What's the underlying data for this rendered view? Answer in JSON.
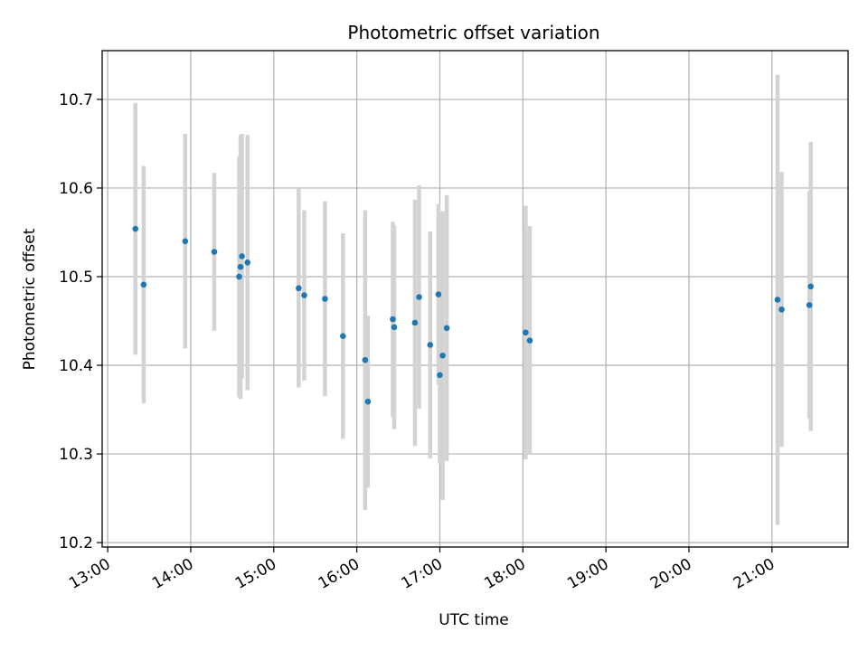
{
  "chart_data": {
    "type": "scatter",
    "title": "Photometric offset variation",
    "xlabel": "UTC time",
    "ylabel": "Photometric offset",
    "x_axis": {
      "type": "time",
      "range": [
        "12:56",
        "21:55"
      ],
      "ticks": [
        "13:00",
        "14:00",
        "15:00",
        "16:00",
        "17:00",
        "18:00",
        "19:00",
        "20:00",
        "21:00"
      ]
    },
    "y_axis": {
      "range": [
        10.195,
        10.755
      ],
      "ticks": [
        "10.2",
        "10.3",
        "10.4",
        "10.5",
        "10.6",
        "10.7"
      ]
    },
    "grid": true,
    "colors": {
      "points": "#1f77b4",
      "errorbars": "#d3d3d3",
      "grid": "#b0b0b0"
    },
    "points": [
      {
        "time": "13:20",
        "y": 10.554,
        "err": 0.142
      },
      {
        "time": "13:26",
        "y": 10.491,
        "err": 0.134
      },
      {
        "time": "13:56",
        "y": 10.54,
        "err": 0.121
      },
      {
        "time": "14:17",
        "y": 10.528,
        "err": 0.089
      },
      {
        "time": "14:35",
        "y": 10.5,
        "err": 0.136
      },
      {
        "time": "14:36",
        "y": 10.511,
        "err": 0.149
      },
      {
        "time": "14:37",
        "y": 10.523,
        "err": 0.138
      },
      {
        "time": "14:41",
        "y": 10.516,
        "err": 0.144
      },
      {
        "time": "15:18",
        "y": 10.487,
        "err": 0.112
      },
      {
        "time": "15:22",
        "y": 10.479,
        "err": 0.096
      },
      {
        "time": "15:37",
        "y": 10.475,
        "err": 0.11
      },
      {
        "time": "15:50",
        "y": 10.433,
        "err": 0.116
      },
      {
        "time": "16:06",
        "y": 10.406,
        "err": 0.169
      },
      {
        "time": "16:08",
        "y": 10.359,
        "err": 0.097
      },
      {
        "time": "16:26",
        "y": 10.452,
        "err": 0.11
      },
      {
        "time": "16:27",
        "y": 10.443,
        "err": 0.115
      },
      {
        "time": "16:42",
        "y": 10.448,
        "err": 0.139
      },
      {
        "time": "16:45",
        "y": 10.477,
        "err": 0.126
      },
      {
        "time": "16:53",
        "y": 10.423,
        "err": 0.128
      },
      {
        "time": "16:59",
        "y": 10.48,
        "err": 0.102
      },
      {
        "time": "17:00",
        "y": 10.389,
        "err": 0.1
      },
      {
        "time": "17:02",
        "y": 10.411,
        "err": 0.163
      },
      {
        "time": "17:05",
        "y": 10.442,
        "err": 0.15
      },
      {
        "time": "18:02",
        "y": 10.437,
        "err": 0.143
      },
      {
        "time": "18:05",
        "y": 10.428,
        "err": 0.129
      },
      {
        "time": "21:04",
        "y": 10.474,
        "err": 0.254
      },
      {
        "time": "21:07",
        "y": 10.463,
        "err": 0.155
      },
      {
        "time": "21:27",
        "y": 10.468,
        "err": 0.128
      },
      {
        "time": "21:28",
        "y": 10.489,
        "err": 0.163
      }
    ]
  }
}
